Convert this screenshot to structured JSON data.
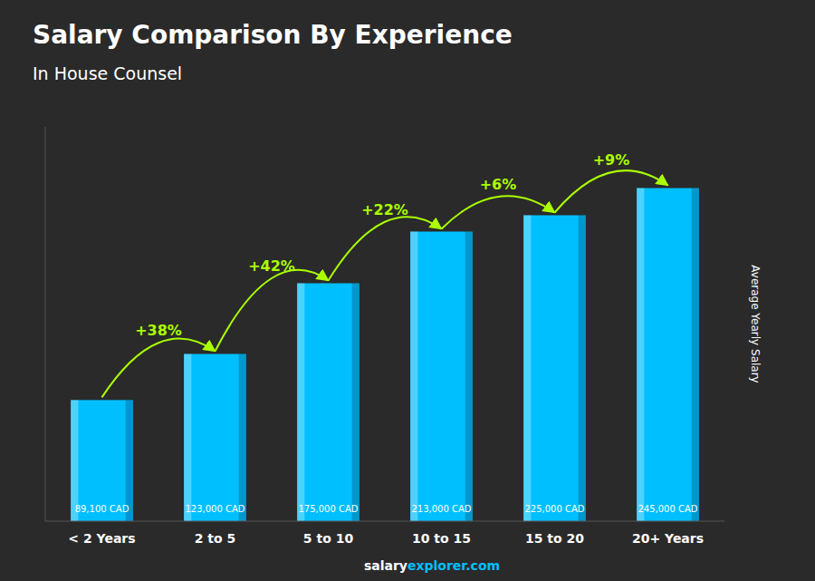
{
  "chart_data": {
    "type": "bar",
    "title": "Salary Comparison By Experience",
    "subtitle": "In House Counsel",
    "categories": [
      "< 2 Years",
      "2 to 5",
      "5 to 10",
      "10 to 15",
      "15 to 20",
      "20+ Years"
    ],
    "values": [
      89100,
      123000,
      175000,
      213000,
      225000,
      245000
    ],
    "value_labels": [
      "89,100 CAD",
      "123,000 CAD",
      "175,000 CAD",
      "213,000 CAD",
      "225,000 CAD",
      "245,000 CAD"
    ],
    "data_labels": true,
    "annotations": [
      "+38%",
      "+42%",
      "+22%",
      "+6%",
      "+9%"
    ],
    "ylabel": "Average Yearly Salary",
    "footer": [
      "salary",
      "explorer.com"
    ],
    "color": "#00BFFF",
    "ylim": [
      0,
      290000
    ],
    "grid": false,
    "tick_labels": "x"
  }
}
